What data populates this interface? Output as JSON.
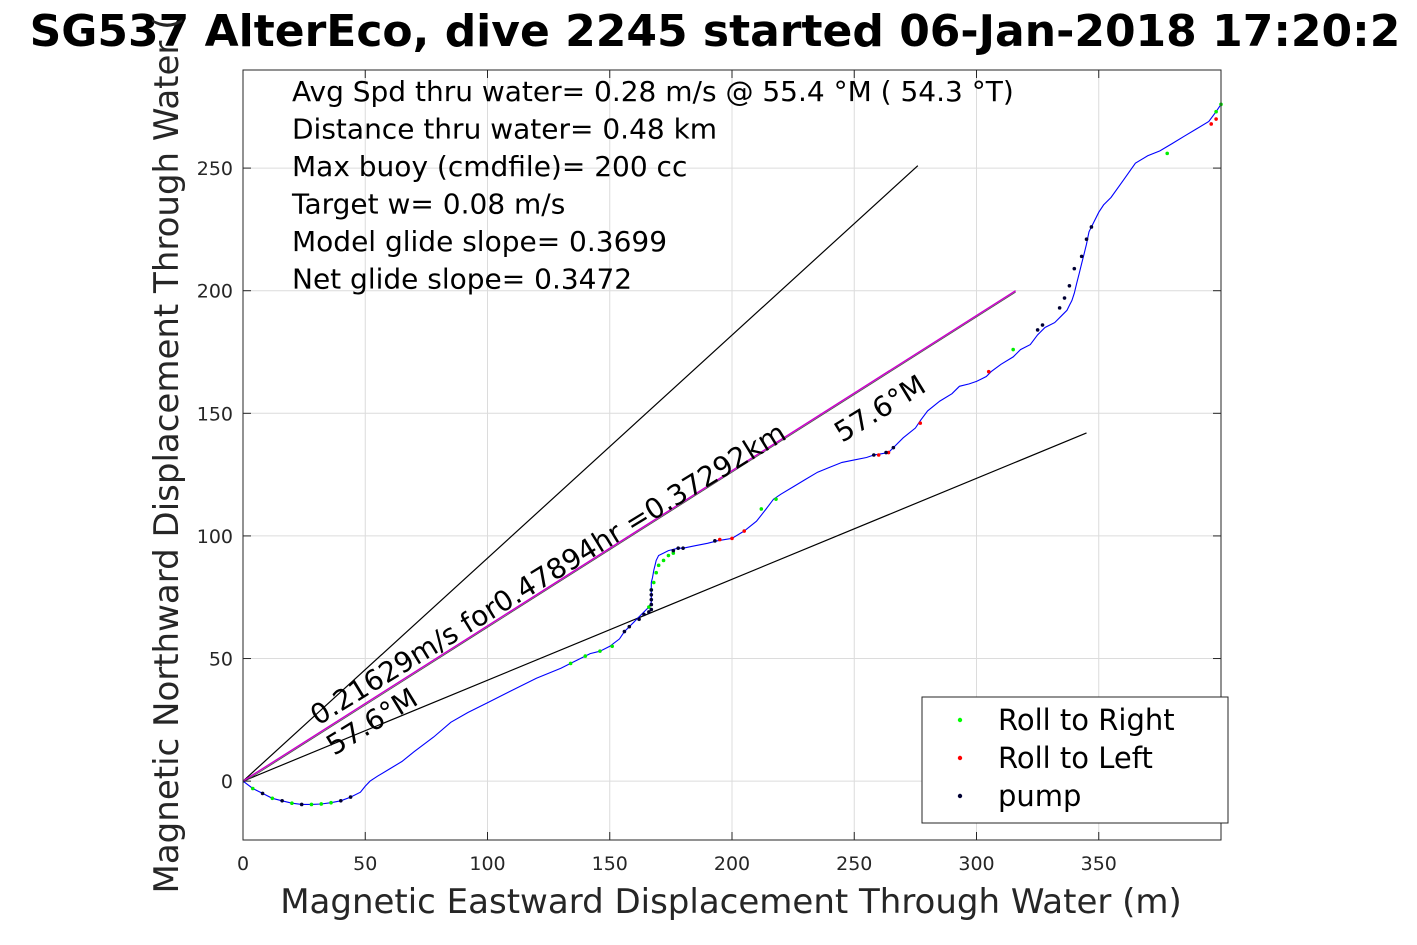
{
  "chart_data": {
    "type": "line",
    "title": "SG537 AlterEco, dive 2245 started 06-Jan-2018 17:20:2",
    "xlabel": "Magnetic Eastward Displacement Through Water (m)",
    "ylabel": "Magnetic Northward Displacement Through Water (",
    "xlim": [
      0,
      400
    ],
    "ylim": [
      -24,
      290
    ],
    "xticks": [
      0,
      50,
      100,
      150,
      200,
      250,
      300,
      350
    ],
    "yticks": [
      0,
      50,
      100,
      150,
      200,
      250
    ],
    "grid": true,
    "info_lines": [
      "Avg Spd thru water=  0.28 m/s @  55.4 °M ( 54.3 °T)",
      "Distance thru water=  0.48 km",
      "Max buoy (cmdfile)= 200 cc",
      "Target w= 0.08 m/s",
      "Model glide slope= 0.3699",
      "Net glide slope= 0.3472"
    ],
    "annotations": {
      "track_label": "0.21629m/s for0.47894hr =0.37292km",
      "heading_label_lower": "57.6°M",
      "heading_label_upper": "57.6°M"
    },
    "legend": {
      "position": "bottom-right",
      "entries": [
        {
          "label": "Roll to Right",
          "color": "#00ff00"
        },
        {
          "label": "Roll to Left",
          "color": "#ff0000"
        },
        {
          "label": "pump",
          "color": "#000033"
        }
      ]
    },
    "colors": {
      "track": "#0000ff",
      "net_heading": "#cc00cc",
      "bounds": "#000000"
    },
    "reference_lines": [
      {
        "x": [
          0,
          276
        ],
        "y": [
          0,
          251
        ]
      },
      {
        "x": [
          0,
          345
        ],
        "y": [
          0,
          142
        ]
      }
    ],
    "net_heading_line": {
      "x": [
        0,
        316
      ],
      "y": [
        0,
        200
      ]
    },
    "series": [
      {
        "style": "line",
        "x": [
          0,
          4,
          8,
          12,
          16,
          20,
          24,
          28,
          32,
          36,
          40,
          44,
          48,
          50,
          52,
          55,
          60,
          65,
          70,
          78,
          85,
          92,
          100,
          110,
          120,
          130,
          134,
          138,
          142,
          146,
          150,
          154,
          156,
          158,
          160,
          162,
          164,
          165,
          166,
          166.5,
          167,
          167,
          167,
          167,
          167,
          167.5,
          168,
          168.5,
          169,
          170,
          172,
          174,
          176,
          178,
          180,
          185,
          190,
          194,
          197,
          200,
          205,
          210,
          214,
          217,
          220,
          225,
          230,
          235,
          240,
          245,
          250,
          255,
          258,
          261,
          264,
          266,
          270,
          275,
          277,
          280,
          285,
          290,
          293,
          297,
          300,
          302,
          304,
          306,
          310,
          315,
          318,
          322,
          325,
          328,
          332,
          335,
          337,
          338,
          339,
          340,
          341,
          342,
          343,
          344,
          345,
          346,
          348,
          350,
          352,
          355,
          360,
          365,
          370,
          375,
          380,
          385,
          390,
          395,
          398,
          400
        ],
        "y": [
          0,
          -3,
          -5,
          -7,
          -8,
          -9,
          -9.5,
          -9.5,
          -9.3,
          -8.8,
          -8,
          -6.5,
          -4.5,
          -2,
          0,
          2,
          5,
          8,
          12,
          18,
          24,
          28,
          32,
          37,
          42,
          46,
          48,
          50,
          52,
          53,
          55,
          58,
          61,
          63,
          65,
          67,
          69,
          70,
          71,
          72,
          73,
          74,
          76,
          78,
          81,
          83,
          86,
          88,
          90,
          92,
          93,
          94,
          94.5,
          95,
          95,
          96,
          97,
          98,
          98.5,
          99,
          102,
          106,
          111,
          115,
          117,
          120,
          123,
          126,
          128,
          130,
          131,
          132,
          133,
          133.5,
          134,
          136,
          140,
          144,
          147,
          151,
          155,
          158,
          161,
          162,
          163,
          164,
          165,
          167,
          170,
          173,
          176,
          178,
          182,
          185,
          187,
          190,
          192,
          194,
          196,
          199,
          203,
          207,
          211,
          215,
          219,
          224,
          228,
          232,
          235,
          238,
          245,
          252,
          255,
          257,
          260,
          263,
          266,
          269,
          273,
          276
        ]
      },
      {
        "style": "markers",
        "marker": "roll_right",
        "x": [
          4,
          12,
          20,
          28,
          32,
          36,
          134,
          140,
          146,
          151,
          166,
          167,
          168,
          169,
          170,
          172,
          174,
          176,
          212,
          218,
          315,
          378,
          398,
          400
        ],
        "y": [
          -3,
          -7,
          -9,
          -9.5,
          -9.3,
          -8.8,
          48,
          51,
          53,
          55,
          71,
          78,
          81,
          85,
          88,
          90,
          92,
          93,
          111,
          115,
          176,
          256,
          273,
          276
        ]
      },
      {
        "style": "markers",
        "marker": "roll_left",
        "x": [
          195,
          200,
          205,
          260,
          264,
          277,
          305,
          396,
          398
        ],
        "y": [
          98.5,
          99,
          102,
          133,
          134,
          146,
          167,
          268,
          270
        ]
      },
      {
        "style": "markers",
        "marker": "pump",
        "x": [
          8,
          16,
          24,
          40,
          44,
          156,
          158,
          162,
          164,
          166,
          167,
          167,
          167,
          167,
          167,
          176,
          178,
          180,
          193,
          258,
          263,
          266,
          325,
          327,
          334,
          336,
          338,
          340,
          343,
          345,
          347
        ],
        "y": [
          -5,
          -8,
          -9.5,
          -8,
          -6.5,
          61,
          63,
          66,
          68,
          69,
          70,
          72,
          74,
          76,
          78,
          94,
          95,
          95,
          98,
          133,
          134,
          136,
          184,
          186,
          193,
          197,
          202,
          209,
          214,
          221,
          226
        ]
      }
    ]
  }
}
